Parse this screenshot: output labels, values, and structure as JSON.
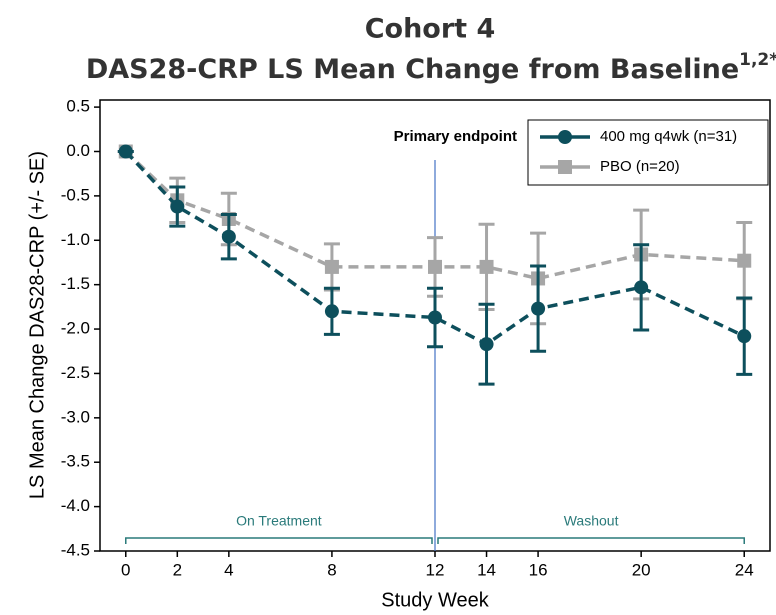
{
  "chart_data": {
    "type": "line",
    "title": "Cohort 4",
    "subtitle": "DAS28-CRP LS Mean Change from Baseline",
    "subtitle_superscript": "1,2*",
    "x_label": "Study Week",
    "y_label": "LS Mean Change DAS28-CRP (+/- SE)",
    "x": [
      0,
      2,
      4,
      8,
      12,
      14,
      16,
      20,
      24
    ],
    "xlim": [
      -1,
      25
    ],
    "xticks": [
      0,
      2,
      4,
      8,
      12,
      14,
      16,
      20,
      24
    ],
    "ylim": [
      -4.5,
      0.58
    ],
    "yticks": [
      0.5,
      {
        "value": 0,
        "label": "0.0"
      },
      -0.5,
      {
        "value": -1,
        "label": "-1.0"
      },
      -1.5,
      {
        "value": -2,
        "label": "-2.0"
      },
      -2.5,
      {
        "value": -3,
        "label": "-3.0"
      },
      -3.5,
      {
        "value": -4,
        "label": "-4.0"
      },
      -4.5
    ],
    "legend": "upper right",
    "series": [
      {
        "name": "PBO (n=20)",
        "color": "#a6a6a6",
        "marker": "square",
        "values": [
          0,
          -0.55,
          -0.76,
          -1.3,
          -1.3,
          -1.3,
          -1.43,
          -1.16,
          -1.23
        ],
        "errors": [
          0,
          0.25,
          0.29,
          0.26,
          0.33,
          0.48,
          0.51,
          0.5,
          0.43
        ]
      },
      {
        "name": "400 mg q4wk (n=31)",
        "color": "#0d4f5c",
        "marker": "circle",
        "values": [
          0,
          -0.62,
          -0.96,
          -1.8,
          -1.87,
          -2.17,
          -1.77,
          -1.53,
          -2.08
        ],
        "errors": [
          0,
          0.22,
          0.25,
          0.26,
          0.33,
          0.45,
          0.48,
          0.48,
          0.43
        ]
      }
    ],
    "vline": {
      "x": 12,
      "label": "Primary endpoint",
      "color": "#4472c4"
    },
    "periods": [
      {
        "label": "On Treatment",
        "from": 0,
        "to": 12,
        "color": "#2a7a7a"
      },
      {
        "label": "Washout",
        "from": 12,
        "to": 24,
        "color": "#2a7a7a"
      }
    ]
  }
}
